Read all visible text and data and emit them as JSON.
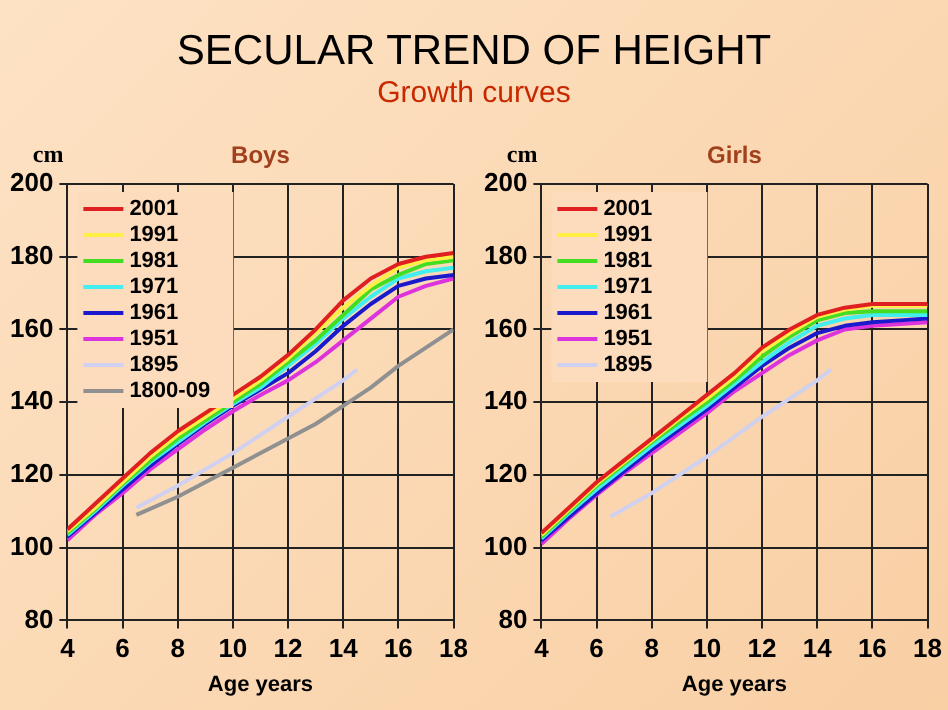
{
  "chart_data": [
    {
      "type": "other",
      "title": "SECULAR TREND OF HEIGHT",
      "subtitle": "Growth curves"
    },
    {
      "type": "line",
      "title": "Boys",
      "xlabel": "Age years",
      "ylabel": "cm",
      "xlim": [
        4,
        18
      ],
      "xticks": [
        4,
        6,
        8,
        10,
        12,
        14,
        16,
        18
      ],
      "ylim": [
        80,
        200
      ],
      "yticks": [
        80,
        100,
        120,
        140,
        160,
        180,
        200
      ],
      "grid": true,
      "legend": "top left",
      "marker": "none",
      "line_style": "solid",
      "series": [
        {
          "name": "2001",
          "color": "#e02020",
          "x": [
            4,
            5,
            6,
            7,
            8,
            9,
            10,
            11,
            12,
            13,
            14,
            15,
            16,
            17,
            18
          ],
          "values": [
            105,
            112,
            119,
            126,
            132,
            137,
            142,
            147,
            153,
            160,
            168,
            174,
            178,
            180,
            181
          ]
        },
        {
          "name": "1991",
          "color": "#ffee44",
          "x": [
            4,
            5,
            6,
            7,
            8,
            9,
            10,
            11,
            12,
            13,
            14,
            15,
            16,
            17,
            18
          ],
          "values": [
            104.5,
            111,
            118,
            125,
            131,
            136,
            141,
            146,
            152,
            159,
            166,
            172,
            177,
            179,
            180
          ]
        },
        {
          "name": "1981",
          "color": "#44dd22",
          "x": [
            4,
            5,
            6,
            7,
            8,
            9,
            10,
            11,
            12,
            13,
            14,
            15,
            16,
            17,
            18
          ],
          "values": [
            104,
            110.5,
            117.5,
            124,
            130,
            135,
            140,
            145,
            151,
            157,
            164,
            171,
            175,
            178,
            179
          ]
        },
        {
          "name": "1971",
          "color": "#44eeee",
          "x": [
            4,
            5,
            6,
            7,
            8,
            9,
            10,
            11,
            12,
            13,
            14,
            15,
            16,
            17,
            18
          ],
          "values": [
            103.5,
            110,
            117,
            123.5,
            129,
            134.5,
            139.5,
            144,
            150,
            156,
            163,
            169,
            174,
            176,
            177
          ]
        },
        {
          "name": "1961",
          "color": "#1a1acc",
          "x": [
            4,
            5,
            6,
            7,
            8,
            9,
            10,
            11,
            12,
            13,
            14,
            15,
            16,
            17,
            18
          ],
          "values": [
            103,
            109.5,
            116,
            122.5,
            128.5,
            134,
            139,
            143.5,
            148,
            154,
            161,
            167,
            172,
            174,
            175
          ]
        },
        {
          "name": "1951",
          "color": "#dd33dd",
          "x": [
            4,
            5,
            6,
            7,
            8,
            9,
            10,
            11,
            12,
            13,
            14,
            15,
            16,
            17,
            18
          ],
          "values": [
            102,
            109,
            115,
            121.5,
            127,
            132.5,
            137.5,
            142,
            146,
            151,
            157,
            163,
            169,
            172,
            174
          ]
        },
        {
          "name": "1895",
          "color": "#d0d0f0",
          "x": [
            6.5,
            8,
            10,
            12,
            14,
            14.5
          ],
          "values": [
            111,
            117,
            126,
            136,
            146,
            149
          ]
        },
        {
          "name": "1800-09",
          "color": "#909090",
          "x": [
            6.5,
            8,
            10,
            12,
            13,
            14,
            15,
            16,
            17,
            18
          ],
          "values": [
            109,
            114,
            122,
            130,
            134,
            139,
            144,
            150,
            155,
            160
          ]
        }
      ]
    },
    {
      "type": "line",
      "title": "Girls",
      "xlabel": "Age years",
      "ylabel": "cm",
      "xlim": [
        4,
        18
      ],
      "xticks": [
        4,
        6,
        8,
        10,
        12,
        14,
        16,
        18
      ],
      "ylim": [
        80,
        200
      ],
      "yticks": [
        80,
        100,
        120,
        140,
        160,
        180,
        200
      ],
      "grid": true,
      "legend": "top left",
      "marker": "none",
      "line_style": "solid",
      "series": [
        {
          "name": "2001",
          "color": "#e02020",
          "x": [
            4,
            5,
            6,
            7,
            8,
            9,
            10,
            11,
            12,
            13,
            14,
            15,
            16,
            17,
            18
          ],
          "values": [
            104,
            111,
            118,
            124,
            130,
            136,
            142,
            148,
            155,
            160,
            164,
            166,
            167,
            167,
            167
          ]
        },
        {
          "name": "1991",
          "color": "#ffee44",
          "x": [
            4,
            5,
            6,
            7,
            8,
            9,
            10,
            11,
            12,
            13,
            14,
            15,
            16,
            17,
            18
          ],
          "values": [
            103.5,
            110.5,
            117.5,
            123.5,
            129.5,
            135.5,
            141,
            147,
            154,
            159,
            163.5,
            165.5,
            166.5,
            166.5,
            166.5
          ]
        },
        {
          "name": "1981",
          "color": "#44dd22",
          "x": [
            4,
            5,
            6,
            7,
            8,
            9,
            10,
            11,
            12,
            13,
            14,
            15,
            16,
            17,
            18
          ],
          "values": [
            103,
            110,
            117,
            123,
            129,
            134.5,
            140,
            146,
            152.5,
            158,
            162.5,
            164.5,
            165,
            165,
            165
          ]
        },
        {
          "name": "1971",
          "color": "#44eeee",
          "x": [
            4,
            5,
            6,
            7,
            8,
            9,
            10,
            11,
            12,
            13,
            14,
            15,
            16,
            17,
            18
          ],
          "values": [
            102.5,
            109.5,
            116,
            122,
            128,
            133.5,
            139,
            145,
            151,
            156.5,
            161,
            163,
            164,
            164,
            164
          ]
        },
        {
          "name": "1961",
          "color": "#1a1acc",
          "x": [
            4,
            5,
            6,
            7,
            8,
            9,
            10,
            11,
            12,
            13,
            14,
            15,
            16,
            17,
            18
          ],
          "values": [
            102,
            108.5,
            115,
            121,
            127,
            132.5,
            138,
            144,
            150,
            155,
            159,
            161,
            162,
            162.5,
            163
          ]
        },
        {
          "name": "1951",
          "color": "#dd33dd",
          "x": [
            4,
            5,
            6,
            7,
            8,
            9,
            10,
            11,
            12,
            13,
            14,
            15,
            16,
            17,
            18
          ],
          "values": [
            101,
            108,
            114.5,
            120.5,
            126,
            131.5,
            137,
            143,
            148,
            153,
            157,
            160,
            161,
            161.5,
            162
          ]
        },
        {
          "name": "1895",
          "color": "#d0d0f0",
          "x": [
            6.5,
            8,
            10,
            12,
            14,
            14.5
          ],
          "values": [
            108.5,
            115,
            125,
            136,
            146,
            149
          ]
        }
      ]
    }
  ]
}
